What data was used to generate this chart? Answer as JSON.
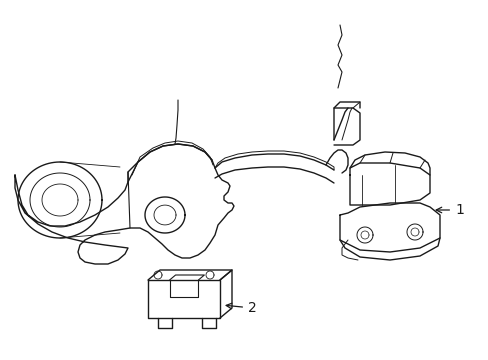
{
  "background_color": "#ffffff",
  "line_color": "#1a1a1a",
  "line_width": 1.0,
  "fig_width": 4.89,
  "fig_height": 3.6,
  "dpi": 100,
  "label_1": "1",
  "label_2": "2",
  "font_size": 10
}
